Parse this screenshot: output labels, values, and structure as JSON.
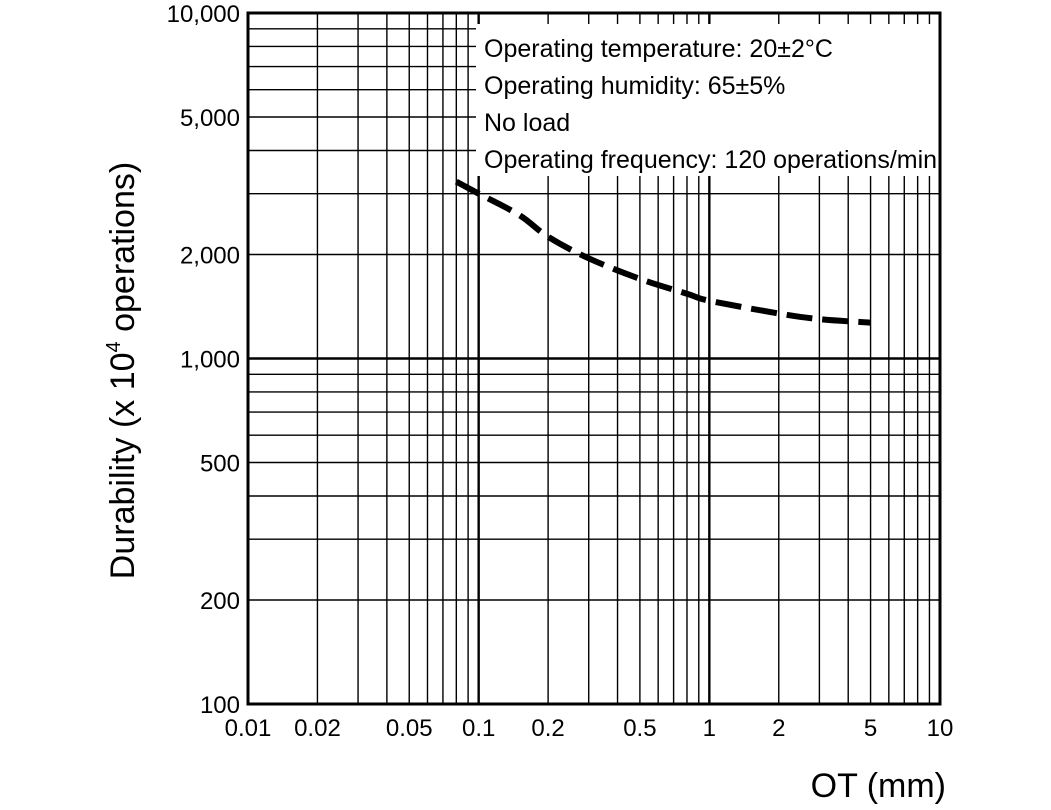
{
  "chart_data": {
    "type": "line",
    "x_scale": "log",
    "y_scale": "log",
    "xlim": [
      0.01,
      10
    ],
    "ylim": [
      100,
      10000
    ],
    "grid": true,
    "xlabel": "OT (mm)",
    "ylabel": {
      "prefix": "Durability  (x 10",
      "superscript": "4",
      "suffix": " operations)"
    },
    "x_ticks": [
      {
        "value": 0.01,
        "label": "0.01"
      },
      {
        "value": 0.02,
        "label": "0.02"
      },
      {
        "value": 0.05,
        "label": "0.05"
      },
      {
        "value": 0.1,
        "label": "0.1"
      },
      {
        "value": 0.2,
        "label": "0.2"
      },
      {
        "value": 0.5,
        "label": "0.5"
      },
      {
        "value": 1,
        "label": "1"
      },
      {
        "value": 2,
        "label": "2"
      },
      {
        "value": 5,
        "label": "5"
      },
      {
        "value": 10,
        "label": "10"
      }
    ],
    "y_ticks": [
      {
        "value": 100,
        "label": "100"
      },
      {
        "value": 200,
        "label": "200"
      },
      {
        "value": 500,
        "label": "500"
      },
      {
        "value": 1000,
        "label": "1,000"
      },
      {
        "value": 2000,
        "label": "2,000"
      },
      {
        "value": 5000,
        "label": "5,000"
      },
      {
        "value": 10000,
        "label": "10,000"
      }
    ],
    "annotations": [
      "Operating temperature: 20±2°C",
      "Operating humidity: 65±5%",
      "No load",
      "Operating frequency: 120 operations/min"
    ],
    "series": [
      {
        "style": "dashed",
        "color": "#000000",
        "x": [
          0.08,
          0.1,
          0.15,
          0.2,
          0.3,
          0.5,
          0.8,
          1,
          2,
          3,
          5
        ],
        "y": [
          3250,
          3000,
          2600,
          2250,
          1950,
          1700,
          1540,
          1470,
          1350,
          1300,
          1270
        ]
      }
    ]
  }
}
